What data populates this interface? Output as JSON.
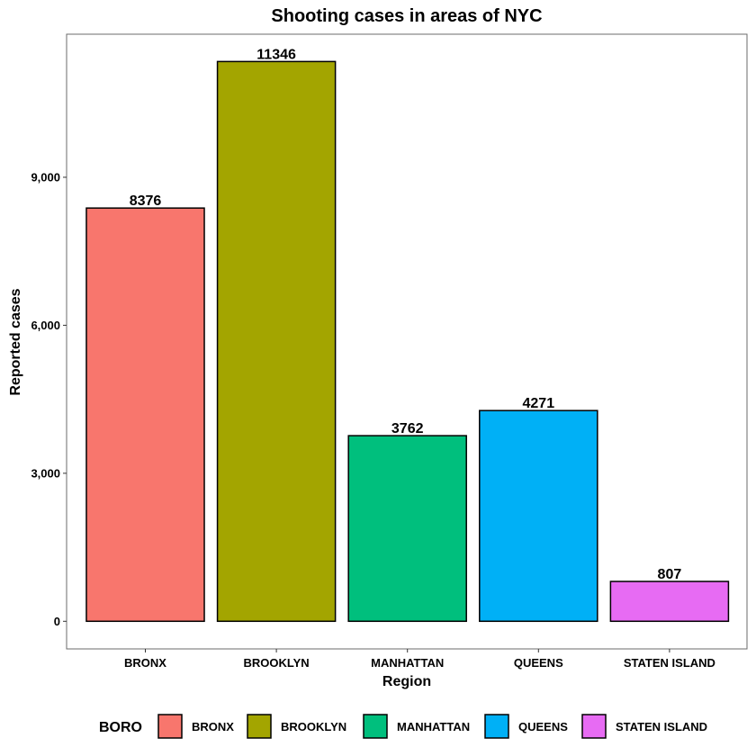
{
  "chart_data": {
    "type": "bar",
    "title": "Shooting cases in areas of NYC",
    "xlabel": "Region",
    "ylabel": "Reported cases",
    "categories": [
      "BRONX",
      "BROOKLYN",
      "MANHATTAN",
      "QUEENS",
      "STATEN ISLAND"
    ],
    "values": [
      8376,
      11346,
      3762,
      4271,
      807
    ],
    "data_labels": [
      "8376",
      "11346",
      "3762",
      "4271",
      "807"
    ],
    "colors": [
      "#F8766D",
      "#A3A500",
      "#00BF7D",
      "#00B0F6",
      "#E76BF3"
    ],
    "ylim": [
      -560,
      11900
    ],
    "y_ticks": [
      0,
      3000,
      6000,
      9000
    ],
    "y_tick_labels": [
      "0",
      "3,000",
      "6,000",
      "9,000"
    ],
    "grid": false,
    "legend": {
      "title": "BORO",
      "position": "bottom",
      "entries": [
        "BRONX",
        "BROOKLYN",
        "MANHATTAN",
        "QUEENS",
        "STATEN ISLAND"
      ]
    }
  }
}
